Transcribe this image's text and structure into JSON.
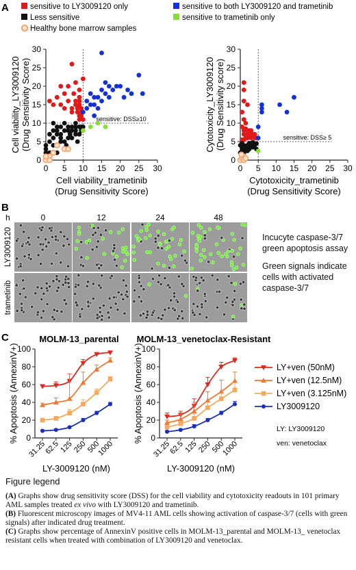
{
  "panel_labels": {
    "a": "A",
    "b": "B",
    "c": "C"
  },
  "legend_a": {
    "red": "sensitive to LY3009120 only",
    "black": "Less sensitive",
    "orange": "Healthy bone marrow samples",
    "blue": "sensitive to both LY3009120 and trametinib",
    "green": "sensitive to trametinib only"
  },
  "colors": {
    "red": "#e01919",
    "black": "#111111",
    "orange": "#f4a46c",
    "blue": "#1431d8",
    "green": "#84e032"
  },
  "chart_data": [
    {
      "type": "scatter",
      "ylabel": "Cell viability_LY3009120",
      "ylabel2": "(Drug Sensitivity Score)",
      "xlabel": "Cell viability_trametinib",
      "xlabel2": "(Drug Sensitivity Score)",
      "xlim": [
        0,
        30
      ],
      "ylim": [
        0,
        30
      ],
      "ticks": [
        0,
        5,
        10,
        15,
        20,
        25,
        30
      ],
      "threshold_x": 10,
      "threshold_y": 10,
      "threshold_label": "sensitive: DSS≥10",
      "series": [
        {
          "color": "red",
          "points": [
            [
              1,
              16
            ],
            [
              2,
              15
            ],
            [
              3,
              17
            ],
            [
              4,
              15
            ],
            [
              4,
              20
            ],
            [
              5,
              18
            ],
            [
              5,
              14
            ],
            [
              6,
              16
            ],
            [
              6,
              20
            ],
            [
              7,
              14
            ],
            [
              7,
              13
            ],
            [
              7,
              26
            ],
            [
              7.5,
              18
            ],
            [
              8,
              21
            ],
            [
              8,
              16
            ],
            [
              8,
              15
            ],
            [
              8.5,
              13
            ],
            [
              8.5,
              14
            ],
            [
              9,
              11
            ],
            [
              9,
              12
            ],
            [
              9,
              17
            ],
            [
              9,
              16
            ],
            [
              9,
              15
            ],
            [
              9.5,
              14
            ],
            [
              9.5,
              13
            ],
            [
              9.5,
              12
            ],
            [
              10,
              11
            ],
            [
              10,
              22
            ],
            [
              9,
              19
            ]
          ]
        },
        {
          "color": "black",
          "points": [
            [
              0,
              3
            ],
            [
              0,
              4
            ],
            [
              0,
              2
            ],
            [
              1,
              5
            ],
            [
              1,
              7
            ],
            [
              2,
              6
            ],
            [
              2,
              8
            ],
            [
              2,
              10
            ],
            [
              3,
              8
            ],
            [
              3,
              9
            ],
            [
              3,
              7
            ],
            [
              3,
              2
            ],
            [
              4,
              7
            ],
            [
              4,
              5
            ],
            [
              4,
              9
            ],
            [
              5,
              8
            ],
            [
              5,
              5
            ],
            [
              5,
              10
            ],
            [
              5.5,
              4
            ],
            [
              6,
              9
            ],
            [
              6,
              6
            ],
            [
              6,
              3
            ],
            [
              6.5,
              7
            ],
            [
              7,
              9
            ],
            [
              7,
              6
            ],
            [
              7,
              8
            ],
            [
              8,
              10
            ],
            [
              8,
              8
            ],
            [
              8,
              7
            ],
            [
              8.5,
              5
            ],
            [
              9,
              9
            ],
            [
              9,
              7
            ],
            [
              9.5,
              9
            ],
            [
              9.5,
              8
            ],
            [
              10,
              9
            ],
            [
              6,
              8
            ],
            [
              4,
              6
            ],
            [
              2,
              4
            ],
            [
              1,
              2
            ],
            [
              8,
              9
            ]
          ]
        },
        {
          "color": "orange",
          "points": [
            [
              0,
              0
            ],
            [
              1,
              1
            ],
            [
              2,
              2
            ],
            [
              3,
              4
            ],
            [
              0,
              1
            ],
            [
              1,
              0
            ],
            [
              5,
              3
            ],
            [
              6,
              3
            ]
          ]
        },
        {
          "color": "blue",
          "points": [
            [
              10,
              13
            ],
            [
              11,
              14
            ],
            [
              11,
              16
            ],
            [
              12,
              15
            ],
            [
              12,
              18
            ],
            [
              13,
              17
            ],
            [
              13,
              15
            ],
            [
              13,
              12
            ],
            [
              14,
              14
            ],
            [
              14,
              17
            ],
            [
              15,
              16
            ],
            [
              15,
              19
            ],
            [
              16,
              21
            ],
            [
              16,
              18
            ],
            [
              17,
              20
            ],
            [
              17,
              17
            ],
            [
              18,
              19
            ],
            [
              19,
              20
            ],
            [
              20,
              20
            ],
            [
              21,
              17
            ],
            [
              22,
              19
            ],
            [
              23,
              18
            ],
            [
              15,
              29
            ],
            [
              25,
              23
            ],
            [
              26,
              18
            ]
          ]
        },
        {
          "color": "green",
          "points": [
            [
              12,
              9
            ],
            [
              14,
              10
            ],
            [
              16,
              9
            ],
            [
              10,
              8
            ]
          ]
        }
      ]
    },
    {
      "type": "scatter",
      "ylabel": "Cytotoxicity_LY3009120",
      "ylabel2": "(Drug Sensitivity score)",
      "xlabel": "Cytotoxicity_trametinib",
      "xlabel2": "(Drug Sensitivity Score)",
      "xlim": [
        0,
        30
      ],
      "ylim": [
        0,
        30
      ],
      "ticks": [
        0,
        5,
        10,
        15,
        20,
        25,
        30
      ],
      "threshold_x": 5,
      "threshold_y": 5,
      "threshold_label": "sensitive: DSS≥ 5",
      "series": [
        {
          "color": "red",
          "points": [
            [
              1,
              21
            ],
            [
              1,
              19
            ],
            [
              1,
              16
            ],
            [
              2,
              15
            ],
            [
              0.5,
              13
            ],
            [
              1,
              11
            ],
            [
              1.5,
              10
            ],
            [
              0.5,
              9
            ],
            [
              1,
              8
            ],
            [
              2,
              8
            ],
            [
              2.5,
              8
            ],
            [
              3,
              8
            ],
            [
              3.5,
              7
            ],
            [
              4,
              7
            ],
            [
              1,
              7
            ],
            [
              1.5,
              6
            ],
            [
              2,
              6
            ],
            [
              3,
              6
            ],
            [
              4,
              6
            ],
            [
              0.5,
              5.5
            ],
            [
              1,
              5.5
            ],
            [
              2.5,
              6.5
            ],
            [
              3,
              7
            ],
            [
              4.5,
              6
            ],
            [
              2,
              7
            ],
            [
              1.5,
              8.5
            ]
          ]
        },
        {
          "color": "black",
          "points": [
            [
              0,
              2
            ],
            [
              0.5,
              3
            ],
            [
              1,
              4
            ],
            [
              1.5,
              3
            ],
            [
              2,
              4
            ],
            [
              2.5,
              3
            ],
            [
              3,
              4
            ],
            [
              3.5,
              3.5
            ],
            [
              4,
              4
            ],
            [
              1,
              3.5
            ],
            [
              0.5,
              4.5
            ],
            [
              3,
              4.5
            ],
            [
              2,
              2.5
            ],
            [
              4.5,
              3
            ],
            [
              1,
              2
            ],
            [
              3.5,
              4.8
            ],
            [
              4.5,
              4.5
            ],
            [
              0,
              4
            ],
            [
              2.5,
              4.6
            ]
          ]
        },
        {
          "color": "orange",
          "points": [
            [
              0,
              0
            ],
            [
              0.5,
              0.5
            ],
            [
              1,
              1
            ],
            [
              0.3,
              1.5
            ],
            [
              1,
              0
            ],
            [
              1.5,
              0.5
            ]
          ]
        },
        {
          "color": "blue",
          "points": [
            [
              5,
              9
            ],
            [
              6,
              13
            ],
            [
              6,
              14
            ],
            [
              6,
              15
            ],
            [
              11,
              15
            ],
            [
              13,
              13
            ],
            [
              15,
              17
            ],
            [
              5,
              6
            ]
          ]
        },
        {
          "color": "green",
          "points": [
            [
              5,
              2.5
            ]
          ]
        }
      ]
    },
    {
      "type": "line",
      "title": "MOLM-13_parental",
      "ylabel": "% Apoptosis (AnnexinV+)",
      "xlabel": "LY-3009120 (nM)",
      "categories": [
        "31.25",
        "62.5",
        "125",
        "250",
        "500",
        "1000"
      ],
      "ylim": [
        0,
        100
      ],
      "yticks": [
        0,
        20,
        40,
        60,
        80,
        100
      ],
      "series": [
        {
          "name": "LY+ven (50nM)",
          "color": "#e0271f",
          "marker": "triangle-down",
          "values": [
            58,
            59,
            64,
            84,
            94,
            96
          ],
          "errors": [
            2,
            4,
            8,
            4,
            2,
            1
          ]
        },
        {
          "name": "LY+ven (12.5nM)",
          "color": "#f07830",
          "marker": "triangle-up",
          "values": [
            37,
            40,
            44,
            62,
            77,
            87
          ],
          "errors": [
            2,
            5,
            28,
            12,
            5,
            3
          ]
        },
        {
          "name": "LY+ven (3.125nM)",
          "color": "#f6a95e",
          "marker": "square",
          "values": [
            20,
            22,
            28,
            38,
            51,
            66
          ],
          "errors": [
            1,
            2,
            4,
            5,
            4,
            3
          ]
        },
        {
          "name": "LY3009120",
          "color": "#1b2fbf",
          "marker": "circle",
          "values": [
            8,
            9,
            12,
            20,
            28,
            38
          ],
          "errors": [
            1,
            1,
            1,
            2,
            2,
            2
          ]
        }
      ]
    },
    {
      "type": "line",
      "title": "MOLM-13_venetoclax-Resistant",
      "ylabel": "% Apoptosis (AnnexinV+)",
      "xlabel": "LY-3009120 (nM)",
      "categories": [
        "31.25",
        "62.5",
        "125",
        "250",
        "500",
        "1000"
      ],
      "ylim": [
        0,
        100
      ],
      "yticks": [
        0,
        20,
        40,
        60,
        80,
        100
      ],
      "series": [
        {
          "name": "LY+ven (50nM)",
          "color": "#e0271f",
          "marker": "triangle-down",
          "values": [
            24,
            26,
            36,
            60,
            80,
            87
          ],
          "errors": [
            4,
            4,
            8,
            8,
            5,
            3
          ]
        },
        {
          "name": "LY+ven (12.5nM)",
          "color": "#f07830",
          "marker": "triangle-up",
          "values": [
            17,
            21,
            30,
            42,
            52,
            64
          ],
          "errors": [
            3,
            6,
            10,
            10,
            13,
            10
          ]
        },
        {
          "name": "LY+ven (3.125nM)",
          "color": "#f6a95e",
          "marker": "square",
          "values": [
            12,
            16,
            22,
            34,
            44,
            54
          ],
          "errors": [
            2,
            3,
            5,
            6,
            6,
            8
          ]
        },
        {
          "name": "LY3009120",
          "color": "#1b2fbf",
          "marker": "circle",
          "values": [
            7,
            9,
            13,
            20,
            28,
            38
          ],
          "errors": [
            1,
            1,
            2,
            2,
            2,
            3
          ]
        }
      ]
    }
  ],
  "line_legend_notes": {
    "ly": "LY: LY3009120",
    "ven": "ven: venetoclax"
  },
  "micro": {
    "h_label": "h",
    "times": [
      "0",
      "12",
      "24",
      "48"
    ],
    "rows": [
      "LY3009120",
      "trametinib"
    ],
    "note1": "Incucyte caspase-3/7 green apoptosis assay",
    "note2": "Green signals indicate cells with activated caspase-3/7",
    "green_fraction_ly": [
      0,
      0.5,
      0.7,
      0.8
    ],
    "green_fraction_tram": [
      0,
      0,
      0.03,
      0.1
    ]
  },
  "figure_legend": {
    "heading": "Figure legend",
    "a_tag": "(A)",
    "a_text_1": " Graphs show drug sensitivity score (DSS) for the cell viability and cytotoxicity readouts in 101 primary AML samples treated ",
    "a_text_italic": "ex vivo",
    "a_text_2": " with LY3009120 and trametinib.",
    "b_tag": "(B)",
    "b_text": " Fluorescent microscopy images of MV4-11 AML cells  showing activation of caspase-3/7 (cells with green signals) after indicated drug treatment.",
    "c_tag": "(C)",
    "c_text": " Graphs show percentage of AnnexinV positive cells in MOLM-13_parental and MOLM-13_ venetoclax resistant cells when treated with combination of LY3009120 and venetoclax."
  }
}
